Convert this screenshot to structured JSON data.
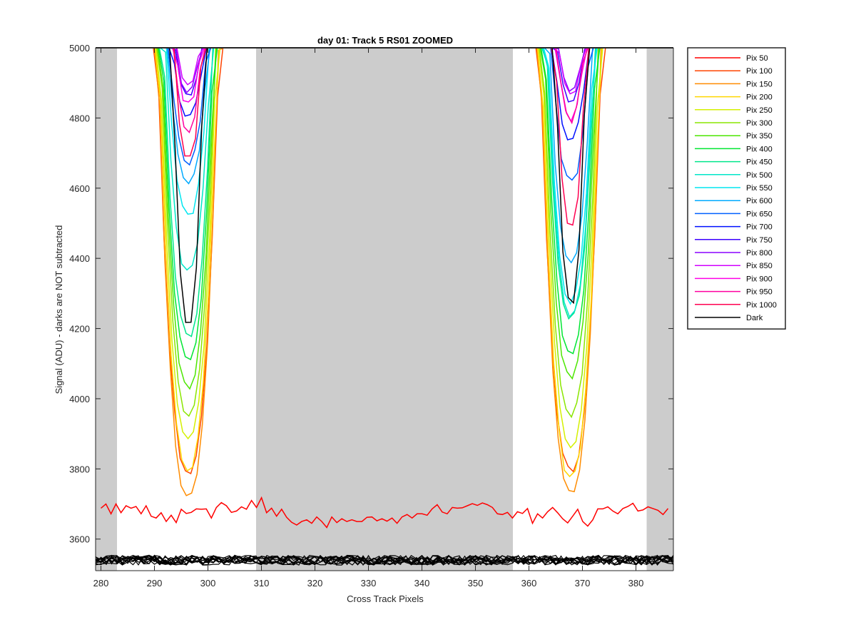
{
  "chart_data": {
    "type": "line",
    "title": "day 01: Track 5  RS01 ZOOMED",
    "xlabel": "Cross Track Pixels",
    "ylabel": "Signal (ADU) - darks are NOT subtracted",
    "xlim": [
      279,
      387
    ],
    "ylim": [
      3510,
      5000
    ],
    "x_ticks": [
      280,
      290,
      300,
      310,
      320,
      330,
      340,
      350,
      360,
      370,
      380
    ],
    "y_ticks": [
      3600,
      3800,
      4000,
      4200,
      4400,
      4600,
      4800,
      5000
    ],
    "x_tick_labels": [
      "280",
      "290",
      "300",
      "310",
      "320",
      "330",
      "340",
      "350",
      "360",
      "370",
      "380"
    ],
    "y_tick_labels": [
      "3600",
      "3800",
      "4000",
      "4200",
      "4400",
      "4600",
      "4800",
      "5000"
    ],
    "shaded_regions": [
      [
        279,
        283
      ],
      [
        309,
        357
      ],
      [
        382,
        387
      ]
    ],
    "grid": false,
    "legend_position": "outside-top-right",
    "series": [
      {
        "name": "Pix 50",
        "color": "#ff0000"
      },
      {
        "name": "Pix 100",
        "color": "#ff4400"
      },
      {
        "name": "Pix 150",
        "color": "#ff8c00"
      },
      {
        "name": "Pix 200",
        "color": "#ffd700"
      },
      {
        "name": "Pix 250",
        "color": "#d4f000"
      },
      {
        "name": "Pix 300",
        "color": "#8ae600"
      },
      {
        "name": "Pix 350",
        "color": "#4ce600"
      },
      {
        "name": "Pix 400",
        "color": "#00e632"
      },
      {
        "name": "Pix 450",
        "color": "#00e68c"
      },
      {
        "name": "Pix 500",
        "color": "#00e6c8"
      },
      {
        "name": "Pix 550",
        "color": "#00e6f0"
      },
      {
        "name": "Pix 600",
        "color": "#00aaff"
      },
      {
        "name": "Pix 650",
        "color": "#0060ff"
      },
      {
        "name": "Pix 700",
        "color": "#0010ff"
      },
      {
        "name": "Pix 750",
        "color": "#3c00ff"
      },
      {
        "name": "Pix 800",
        "color": "#8a00ff"
      },
      {
        "name": "Pix 850",
        "color": "#d000ff"
      },
      {
        "name": "Pix 900",
        "color": "#ff00e6"
      },
      {
        "name": "Pix 950",
        "color": "#ff00a0"
      },
      {
        "name": "Pix 1000",
        "color": "#ff0050"
      },
      {
        "name": "Dark",
        "color": "#000000"
      }
    ],
    "dip_minima": [
      {
        "left": 3790,
        "right": 3795
      },
      {
        "left": 3720,
        "right": 3730
      },
      {
        "left": 3795,
        "right": 3775
      },
      {
        "left": 3880,
        "right": 3860
      },
      {
        "left": 3960,
        "right": 3950
      },
      {
        "left": 4030,
        "right": 4060
      },
      {
        "left": 4110,
        "right": 4130
      },
      {
        "left": 4180,
        "right": 4230
      },
      {
        "left": 4360,
        "right": 4240
      },
      {
        "left": 4520,
        "right": 4280
      },
      {
        "left": 4610,
        "right": 4390
      },
      {
        "left": 4670,
        "right": 4620
      },
      {
        "left": 4800,
        "right": 4740
      },
      {
        "left": 4870,
        "right": 4850
      },
      {
        "left": 4880,
        "right": 4880
      },
      {
        "left": 4900,
        "right": 4870
      },
      {
        "left": 4840,
        "right": 4800
      },
      {
        "left": 4760,
        "right": 4790
      },
      {
        "left": 4680,
        "right": 4490
      },
      {
        "left": 4205,
        "right": 4270
      }
    ],
    "baseline_pix50": [
      3688,
      3700,
      3672,
      3700,
      3675,
      3695,
      3688,
      3693,
      3672,
      3695,
      3665,
      3660,
      3675,
      3650,
      3668,
      3647,
      3685,
      3673,
      3676,
      3686,
      3685,
      3686,
      3660,
      3690,
      3704,
      3695,
      3676,
      3680,
      3692,
      3685,
      3710,
      3690,
      3718,
      3675,
      3688,
      3665,
      3685,
      3662,
      3648,
      3640,
      3650,
      3655,
      3645,
      3663,
      3650,
      3633,
      3663,
      3647,
      3658,
      3650,
      3655,
      3650,
      3650,
      3662,
      3663,
      3652,
      3658,
      3651,
      3660,
      3645,
      3663,
      3670,
      3660,
      3672,
      3672,
      3668,
      3686,
      3698,
      3677,
      3672,
      3690,
      3688,
      3689,
      3695,
      3701,
      3696,
      3703,
      3698,
      3690,
      3672,
      3670,
      3676,
      3660,
      3678,
      3673,
      3687,
      3645,
      3672,
      3660,
      3678,
      3690,
      3675,
      3658,
      3646,
      3665,
      3685,
      3650,
      3637,
      3655,
      3686,
      3686,
      3692,
      3680,
      3672,
      3687,
      3693,
      3702,
      3680,
      3683,
      3692,
      3687,
      3682,
      3670,
      3687
    ],
    "dark_level": 3540
  },
  "legend": {
    "items": [
      "Pix 50",
      "Pix 100",
      "Pix 150",
      "Pix 200",
      "Pix 250",
      "Pix 300",
      "Pix 350",
      "Pix 400",
      "Pix 450",
      "Pix 500",
      "Pix 550",
      "Pix 600",
      "Pix 650",
      "Pix 700",
      "Pix 750",
      "Pix 800",
      "Pix 850",
      "Pix 900",
      "Pix 950",
      "Pix 1000",
      "Dark"
    ]
  }
}
